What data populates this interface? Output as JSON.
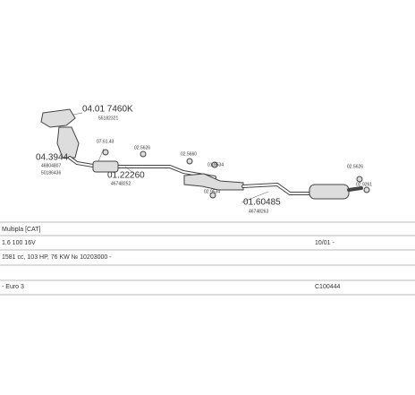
{
  "labels": [
    {
      "text": "04.01 7460K"
    },
    {
      "text": "55182321"
    },
    {
      "text": "04.3944"
    },
    {
      "text": "46804807"
    },
    {
      "text": "50186436"
    },
    {
      "text": "07.61.43"
    },
    {
      "text": "02.5626"
    },
    {
      "text": "01.22260"
    },
    {
      "text": "46748252"
    },
    {
      "text": "02.5660"
    },
    {
      "text": "01.9534"
    },
    {
      "text": "02.9534"
    },
    {
      "text": "01.60485"
    },
    {
      "text": "46748263"
    },
    {
      "text": "02.5626"
    },
    {
      "text": "02.9261"
    }
  ],
  "table": {
    "rows": [
      [
        "Multipla [CAT]",
        ""
      ],
      [
        "1.6 100 16V",
        "10/01 -"
      ],
      [
        "1581 cc, 103 HP, 76 KW № 10203000 -",
        ""
      ],
      [
        "",
        ""
      ],
      [
        "- Euro 3",
        "C100444"
      ]
    ]
  }
}
